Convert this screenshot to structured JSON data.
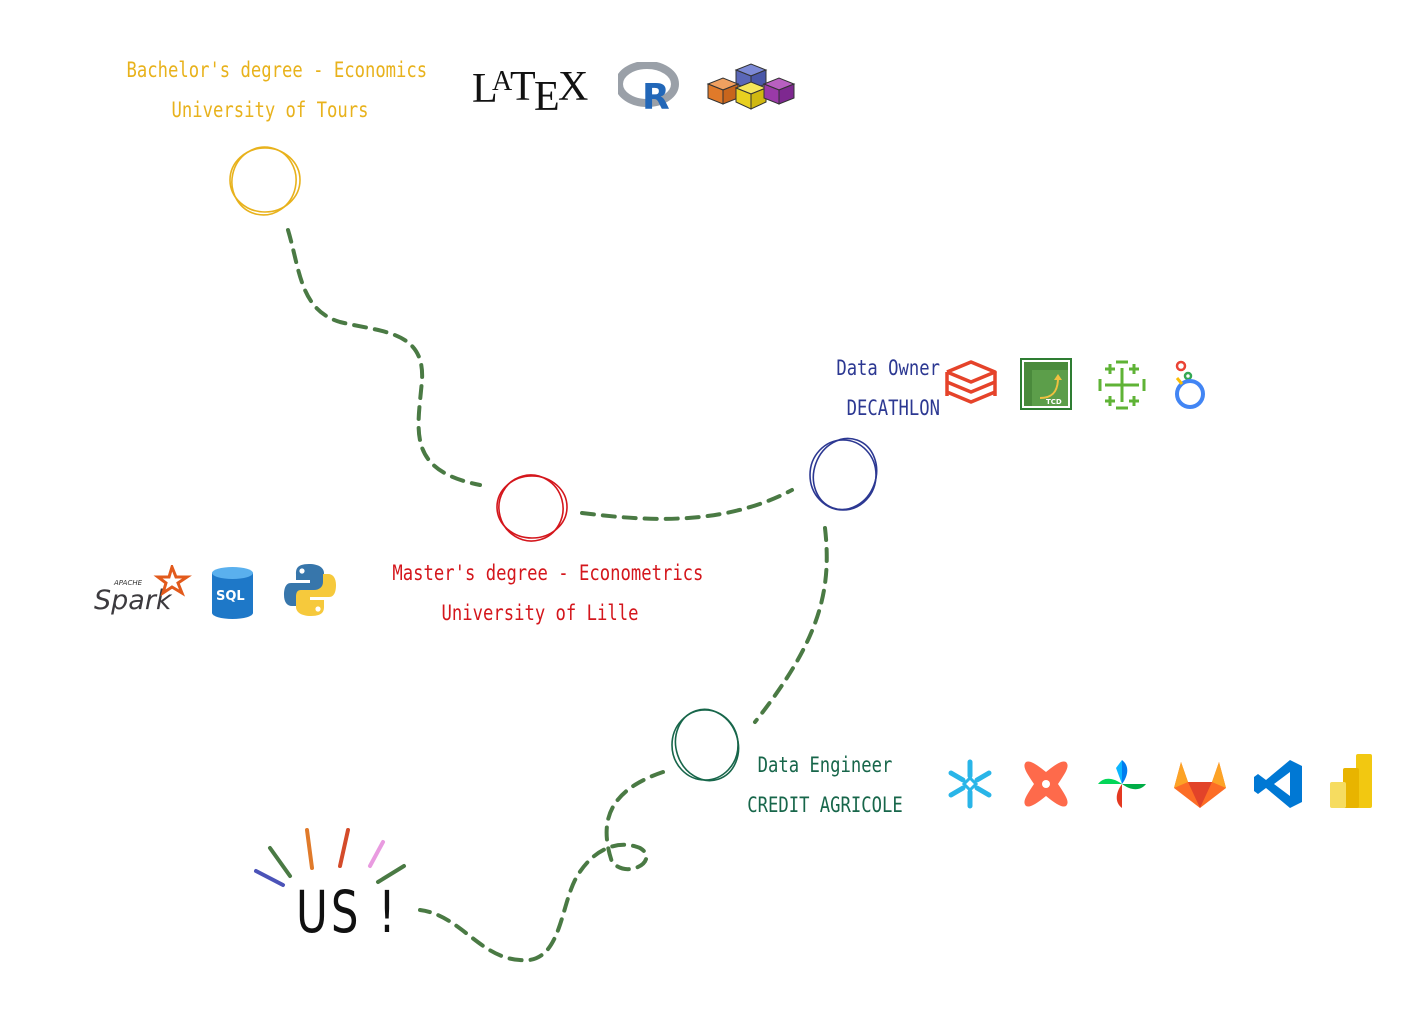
{
  "milestones": {
    "bachelor": {
      "line1": "Bachelor's degree - Economics",
      "line2": "University of Tours",
      "color": "#e8b21c"
    },
    "master": {
      "line1": "Master's degree - Econometrics",
      "line2": "University of Lille",
      "color": "#d4161c"
    },
    "owner": {
      "line1": "Data Owner",
      "line2": "DECATHLON",
      "color": "#2c3892"
    },
    "engineer": {
      "line1": "Data Engineer",
      "line2": "CREDIT AGRICOLE",
      "color": "#17664a"
    }
  },
  "finale": {
    "text": "US !"
  },
  "path_color": "#4a7a44",
  "logos": {
    "latex": {
      "text": "LATEX",
      "icon": "latex-logo"
    },
    "r": {
      "text": "R",
      "icon": "r-logo"
    },
    "cubes": {
      "icon": "olap-cubes-icon"
    },
    "spark": {
      "small": "APACHE",
      "text": "Spark",
      "icon": "spark-logo"
    },
    "sql": {
      "text": "SQL",
      "icon": "sql-database-icon"
    },
    "python": {
      "icon": "python-logo"
    },
    "databricks": {
      "icon": "databricks-logo"
    },
    "tcd": {
      "text": "TCD",
      "icon": "pivot-table-icon"
    },
    "tableau": {
      "icon": "tableau-logo"
    },
    "looker": {
      "icon": "looker-logo"
    },
    "snowflake": {
      "icon": "snowflake-logo"
    },
    "dbt": {
      "icon": "dbt-logo"
    },
    "airflow": {
      "icon": "airflow-logo"
    },
    "gitlab": {
      "icon": "gitlab-logo"
    },
    "vscode": {
      "icon": "vscode-logo"
    },
    "powerbi": {
      "icon": "powerbi-logo"
    }
  }
}
